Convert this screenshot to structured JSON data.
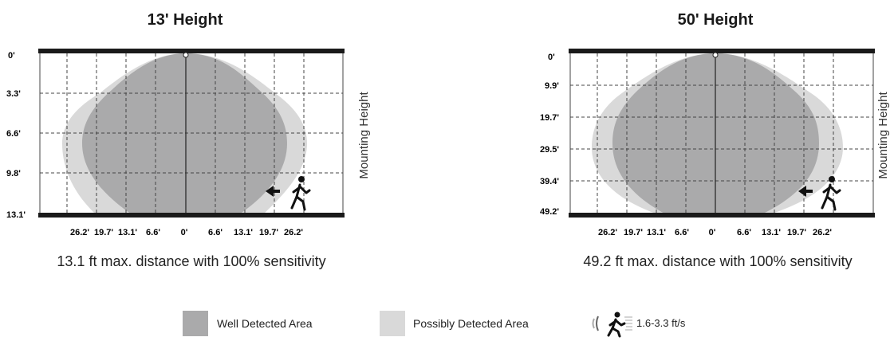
{
  "colors": {
    "well": "#aaaaab",
    "possible": "#d9d9d9",
    "bar": "#1a1a1a",
    "grid": "#444444"
  },
  "panels": [
    {
      "title": "13' Height",
      "side_label": "Mounting Height",
      "y_ticks": [
        "0'",
        "3.3'",
        "6.6'",
        "9.8'",
        "13.1'"
      ],
      "x_ticks": [
        "26.2'",
        "19.7'",
        "13.1'",
        "6.6'",
        "0'",
        "6.6'",
        "13.1'",
        "19.7'",
        "26.2'"
      ],
      "caption": "13.1 ft max. distance with 100% sensitivity"
    },
    {
      "title": "50' Height",
      "side_label": "Mounting Height",
      "y_ticks": [
        "0'",
        "9.9'",
        "19.7'",
        "29.5'",
        "39.4'",
        "49.2'"
      ],
      "x_ticks": [
        "26.2'",
        "19.7'",
        "13.1'",
        "6.6'",
        "0'",
        "6.6'",
        "13.1'",
        "19.7'",
        "26.2'"
      ],
      "caption": "49.2 ft max. distance with 100% sensitivity"
    }
  ],
  "legend": {
    "well_label": "Well Detected Area",
    "possible_label": "Possibly Detected Area",
    "speed_label": "1.6-3.3 ft/s"
  }
}
